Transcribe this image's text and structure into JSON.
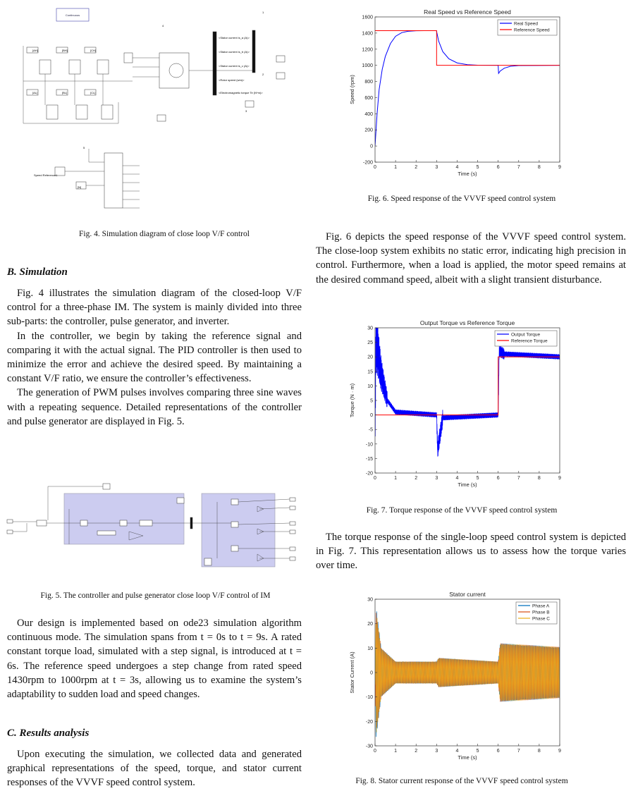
{
  "left_column": {
    "fig4_caption": "Fig. 4.  Simulation diagram of close loop V/F control",
    "fig4_labels": {
      "continuous": "Continuous",
      "speed_reference": "Speed Reference1",
      "gate_tags": [
        "[AH]",
        "[BH]",
        "[CH]",
        "[AL]",
        "[BL]",
        "[CL]"
      ],
      "scope_signals": [
        "<Stator current is_a (A)>",
        "<Stator current is_b (A)>",
        "<Stator current is_c (A)>",
        "<Rotor speed (wm)>",
        "<Electromagnetic torque Te (N*m)>"
      ],
      "goto_numbers": [
        "1",
        "2",
        "3",
        "4",
        "5"
      ],
      "n_tag": "[N]"
    },
    "section_b": "B.  Simulation",
    "p1": "Fig. 4 illustrates the simulation diagram of the closed-loop V/F control for a three-phase IM. The system is mainly divided into three sub-parts: the controller, pulse generator, and inverter.",
    "p2": "In the controller, we begin by taking the reference signal and comparing it with the actual signal. The PID controller is then used to minimize the error and achieve the desired speed. By maintaining a constant V/F ratio, we ensure the controller’s effectiveness.",
    "p3": "The generation of PWM pulses involves comparing three sine waves with a repeating sequence. Detailed representations of the controller and pulse generator are displayed in Fig. 5.",
    "fig5_caption": "Fig. 5.  The controller and pulse generator close loop V/F control of IM",
    "p4": "Our design is implemented based on ode23 simulation algorithm continuous mode. The simulation spans from t = 0s to t = 9s. A rated constant torque load, simulated with a step signal, is introduced at t = 6s. The reference speed undergoes a step change from rated speed 1430rpm to 1000rpm at t = 3s, allowing us to examine the system’s adaptability to sudden load and speed changes.",
    "section_c": "C.  Results analysis",
    "p5": "Upon executing the simulation, we collected data and generated graphical representations of the speed, torque, and stator current responses of the VVVF speed control system."
  },
  "right_column": {
    "fig6_caption": "Fig. 6.  Speed response of the VVVF speed control system",
    "p6": "Fig. 6 depicts the speed response of the VVVF speed control system. The close-loop system exhibits no static error, indicating high precision in control. Furthermore, when a load is applied, the motor speed remains at the desired command speed, albeit with a slight transient disturbance.",
    "fig7_caption": "Fig. 7.  Torque response of the VVVF speed control system",
    "p7": "The torque response of the single-loop speed control system is depicted in Fig. 7. This representation allows us to assess how the torque varies over time.",
    "fig8_caption": "Fig. 8.  Stator current response of the VVVF speed control system"
  },
  "chart_data": [
    {
      "type": "line",
      "title": "Real Speed vs Reference Speed",
      "xlabel": "Time (s)",
      "ylabel": "Speed (rpm)",
      "xlim": [
        0,
        9
      ],
      "ylim": [
        -200,
        1600
      ],
      "xticks": [
        0,
        1,
        2,
        3,
        4,
        5,
        6,
        7,
        8,
        9
      ],
      "yticks": [
        -200,
        0,
        200,
        400,
        600,
        800,
        1000,
        1200,
        1400,
        1600
      ],
      "legend_position": "top-right",
      "series": [
        {
          "name": "Real Speed",
          "color": "#0000ff",
          "x": [
            0,
            0.1,
            0.2,
            0.35,
            0.5,
            0.75,
            1.0,
            1.3,
            1.6,
            2.0,
            2.4,
            3.0,
            3.0,
            3.1,
            3.3,
            3.6,
            4.0,
            4.5,
            5.0,
            6.0,
            6.02,
            6.1,
            6.3,
            6.6,
            7.0,
            9.0
          ],
          "y": [
            0,
            400,
            700,
            950,
            1110,
            1270,
            1360,
            1405,
            1422,
            1429,
            1430,
            1430,
            1420,
            1300,
            1170,
            1080,
            1030,
            1008,
            1002,
            1000,
            900,
            930,
            965,
            988,
            997,
            1000
          ]
        },
        {
          "name": "Reference Speed",
          "color": "#ff0000",
          "x": [
            0,
            3,
            3,
            9
          ],
          "y": [
            1430,
            1430,
            1000,
            1000
          ]
        }
      ]
    },
    {
      "type": "line",
      "title": "Output Torque vs Reference Torque",
      "xlabel": "Time (s)",
      "ylabel": "Torque (N · m)",
      "xlim": [
        0,
        9
      ],
      "ylim": [
        -20,
        30
      ],
      "xticks": [
        0,
        1,
        2,
        3,
        4,
        5,
        6,
        7,
        8,
        9
      ],
      "yticks": [
        -20,
        -15,
        -10,
        -5,
        0,
        5,
        10,
        15,
        20,
        25,
        30
      ],
      "legend_position": "top-right",
      "series": [
        {
          "name": "Output Torque",
          "color": "#0000ff",
          "x": [
            0,
            0.05,
            0.3,
            0.6,
            1.0,
            3.0,
            3.05,
            3.3,
            6.0,
            6.05,
            6.3,
            9.0
          ],
          "y": [
            0,
            26,
            14,
            5,
            1,
            0,
            -12,
            -1,
            0,
            22,
            21,
            20
          ]
        },
        {
          "name": "Reference Torque",
          "color": "#ff0000",
          "x": [
            0,
            6,
            6,
            9
          ],
          "y": [
            0,
            0,
            20,
            20
          ]
        }
      ]
    },
    {
      "type": "line",
      "title": "Stator current",
      "xlabel": "Time (s)",
      "ylabel": "Stator Current (A)",
      "xlim": [
        0,
        9
      ],
      "ylim": [
        -30,
        30
      ],
      "xticks": [
        0,
        1,
        2,
        3,
        4,
        5,
        6,
        7,
        8,
        9
      ],
      "yticks": [
        -30,
        -20,
        -10,
        0,
        10,
        20,
        30
      ],
      "legend_position": "top-right",
      "series": [
        {
          "name": "Phase A",
          "color": "#0072bd",
          "envelope_amplitude": {
            "x": [
              0,
              0.05,
              0.3,
              1.0,
              3.0,
              3.1,
              6.0,
              6.1,
              9.0
            ],
            "y": [
              0,
              28,
              10,
              4.5,
              4.5,
              6,
              4.5,
              12,
              10.5
            ]
          }
        },
        {
          "name": "Phase B",
          "color": "#d95319",
          "envelope_amplitude": {
            "x": [
              0,
              0.05,
              0.3,
              1.0,
              3.0,
              3.1,
              6.0,
              6.1,
              9.0
            ],
            "y": [
              0,
              25,
              10,
              4.5,
              4.5,
              6,
              4.5,
              12,
              10.5
            ]
          }
        },
        {
          "name": "Phase C",
          "color": "#edb120",
          "envelope_amplitude": {
            "x": [
              0,
              0.05,
              0.3,
              1.0,
              3.0,
              3.1,
              6.0,
              6.1,
              9.0
            ],
            "y": [
              0,
              26,
              10,
              4.5,
              4.5,
              6,
              4.5,
              12,
              10.5
            ]
          }
        }
      ]
    }
  ]
}
